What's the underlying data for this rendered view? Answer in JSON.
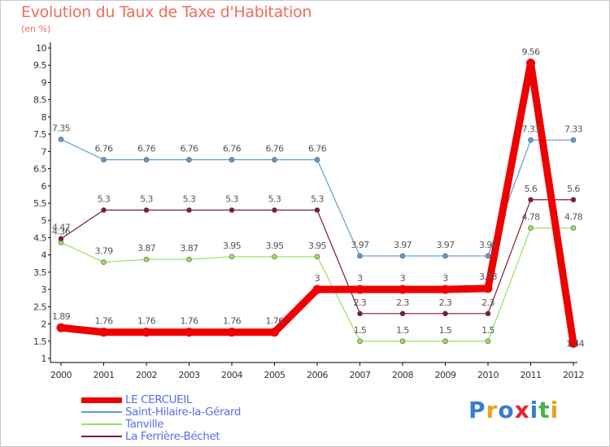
{
  "chart_data": {
    "type": "line",
    "title": "Evolution du Taux de Taxe d'Habitation",
    "subtitle": "(en %)",
    "xlabel": "",
    "ylabel": "",
    "categories": [
      "2000",
      "2001",
      "2002",
      "2003",
      "2004",
      "2005",
      "2006",
      "2007",
      "2008",
      "2009",
      "2010",
      "2011",
      "2012"
    ],
    "ylim": [
      1,
      10
    ],
    "yticks": [
      "1",
      "1.5",
      "2",
      "2.5",
      "3",
      "3.5",
      "4",
      "4.5",
      "5",
      "5.5",
      "6",
      "6.5",
      "7",
      "7.5",
      "8",
      "8.5",
      "9",
      "9.5",
      "10"
    ],
    "grid": false,
    "legend_position": "bottom-left",
    "series": [
      {
        "name": "LE CERCUEIL",
        "color": "#ee0000",
        "values": [
          1.89,
          1.76,
          1.76,
          1.76,
          1.76,
          1.76,
          3,
          3,
          3,
          3,
          3.03,
          9.56,
          1.44
        ],
        "labels": [
          "1.89",
          "1.76",
          "1.76",
          "1.76",
          "1.76",
          "1.76",
          "3",
          "3",
          "3",
          "3",
          "3.03",
          "9.56",
          "1.44"
        ]
      },
      {
        "name": "Saint-Hilaire-la-Gérard",
        "color": "#5b9bd5",
        "values": [
          7.35,
          6.76,
          6.76,
          6.76,
          6.76,
          6.76,
          6.76,
          3.97,
          3.97,
          3.97,
          3.97,
          7.33,
          7.33
        ],
        "labels": [
          "7.35",
          "6.76",
          "6.76",
          "6.76",
          "6.76",
          "6.76",
          "6.76",
          "3.97",
          "3.97",
          "3.97",
          "3.97",
          "7.33",
          "7.33"
        ]
      },
      {
        "name": "Tanville",
        "color": "#99e05a",
        "values": [
          4.36,
          3.79,
          3.87,
          3.87,
          3.95,
          3.95,
          3.95,
          1.5,
          1.5,
          1.5,
          1.5,
          4.78,
          4.78
        ],
        "labels": [
          "4.36",
          "3.79",
          "3.87",
          "3.87",
          "3.95",
          "3.95",
          "3.95",
          "1.5",
          "1.5",
          "1.5",
          "1.5",
          "4.78",
          "4.78"
        ]
      },
      {
        "name": "La Ferrière-Béchet",
        "color": "#7b1f2a",
        "values": [
          4.47,
          5.3,
          5.3,
          5.3,
          5.3,
          5.3,
          5.3,
          2.3,
          2.3,
          2.3,
          2.3,
          5.6,
          5.6
        ],
        "labels": [
          "4.47",
          "5.3",
          "5.3",
          "5.3",
          "5.3",
          "5.3",
          "5.3",
          "2.3",
          "2.3",
          "2.3",
          "2.3",
          "5.6",
          "5.6"
        ]
      }
    ]
  },
  "logo": {
    "letters": [
      "P",
      "r",
      "o",
      "x",
      "i",
      "t",
      "i"
    ],
    "colors": [
      "#3a7bd5",
      "#e8a317",
      "#3a7bd5",
      "#e0262e",
      "#3a7bd5",
      "#46b34a",
      "#e8a317"
    ]
  }
}
